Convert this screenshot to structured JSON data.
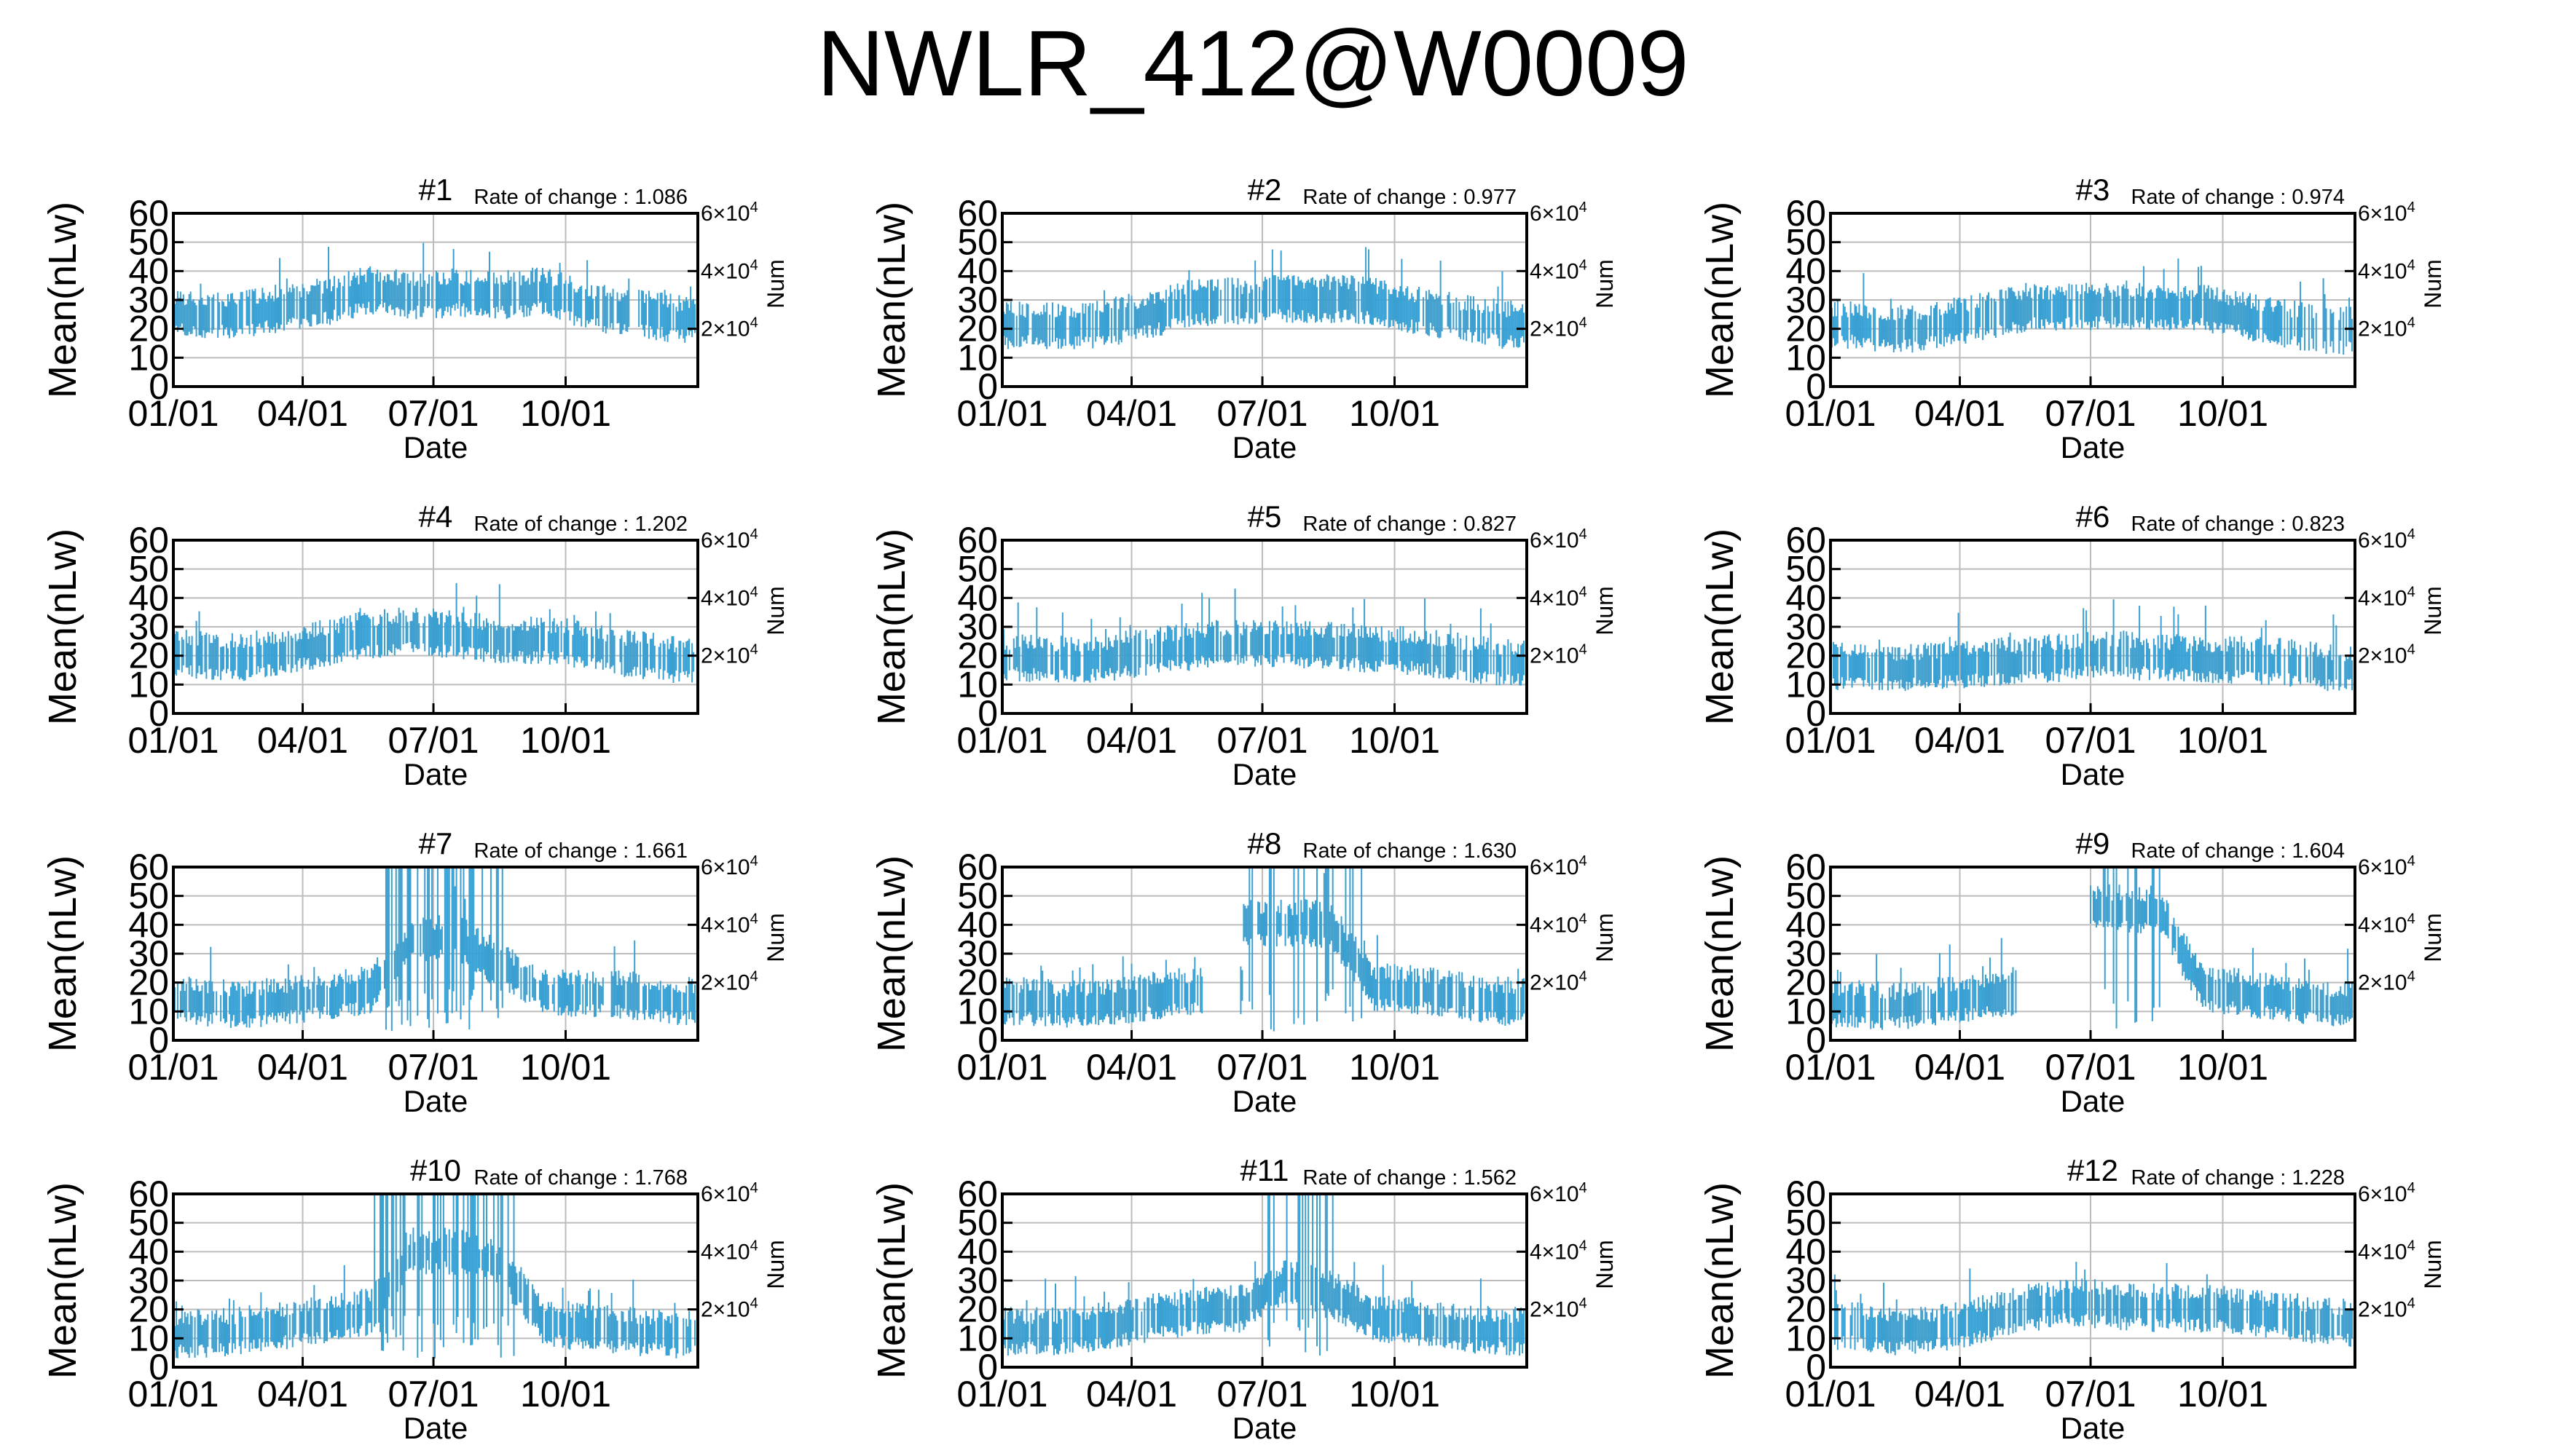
{
  "title": "NWLR_412@W0009",
  "colors": {
    "series": "#3a9fd1",
    "grid": "#bcbcbc",
    "frame": "#000000"
  },
  "common": {
    "ylabel": "Mean(nLw)",
    "xlabel": "Date",
    "right_label": "Num",
    "roc_prefix": "Rate of change : ",
    "y_ticks": [
      "0",
      "10",
      "20",
      "30",
      "40",
      "50",
      "60"
    ],
    "x_ticks": [
      "01/01",
      "04/01",
      "07/01",
      "10/01"
    ],
    "right_ticks": [
      "2×10",
      "4×10",
      "6×10"
    ],
    "right_tick_exp": "4"
  },
  "chart_data": [
    {
      "type": "line",
      "title": "#1",
      "rate_of_change": "1.086",
      "xlabel": "Date",
      "ylabel": "Mean(nLw)",
      "y2label": "Num",
      "x_ticks": [
        "01/01",
        "04/01",
        "07/01",
        "10/01"
      ],
      "ylim": [
        0,
        60
      ],
      "y2_ticks": [
        20000,
        40000,
        60000
      ],
      "grid": true,
      "profile": {
        "months": [
          1,
          2,
          3,
          4,
          5,
          6,
          7,
          8,
          9,
          10,
          11,
          12
        ],
        "mean": [
          25,
          24,
          27,
          29,
          33,
          31,
          32,
          31,
          33,
          27,
          25,
          23
        ]
      }
    },
    {
      "type": "line",
      "title": "#2",
      "rate_of_change": "0.977",
      "xlabel": "Date",
      "ylabel": "Mean(nLw)",
      "y2label": "Num",
      "x_ticks": [
        "01/01",
        "04/01",
        "07/01",
        "10/01"
      ],
      "ylim": [
        0,
        60
      ],
      "y2_ticks": [
        20000,
        40000,
        60000
      ],
      "grid": true,
      "profile": {
        "months": [
          1,
          2,
          3,
          4,
          5,
          6,
          7,
          8,
          9,
          10,
          11,
          12
        ],
        "mean": [
          21,
          20,
          22,
          25,
          29,
          29,
          30,
          30,
          29,
          26,
          23,
          21
        ]
      }
    },
    {
      "type": "line",
      "title": "#3",
      "rate_of_change": "0.974",
      "xlabel": "Date",
      "ylabel": "Mean(nLw)",
      "y2label": "Num",
      "x_ticks": [
        "01/01",
        "04/01",
        "07/01",
        "10/01"
      ],
      "ylim": [
        0,
        60
      ],
      "y2_ticks": [
        20000,
        40000,
        60000
      ],
      "grid": true,
      "profile": {
        "months": [
          1,
          2,
          3,
          4,
          5,
          6,
          7,
          8,
          9,
          10,
          11,
          12
        ],
        "mean": [
          21,
          19,
          21,
          24,
          27,
          27,
          28,
          27,
          27,
          24,
          21,
          19
        ]
      }
    },
    {
      "type": "line",
      "title": "#4",
      "rate_of_change": "1.202",
      "xlabel": "Date",
      "ylabel": "Mean(nLw)",
      "y2label": "Num",
      "x_ticks": [
        "01/01",
        "04/01",
        "07/01",
        "10/01"
      ],
      "ylim": [
        0,
        60
      ],
      "y2_ticks": [
        20000,
        40000,
        60000
      ],
      "grid": true,
      "profile": {
        "months": [
          1,
          2,
          3,
          4,
          5,
          6,
          7,
          8,
          9,
          10,
          11,
          12
        ],
        "mean": [
          20,
          19,
          21,
          24,
          27,
          28,
          27,
          25,
          25,
          23,
          20,
          18
        ]
      }
    },
    {
      "type": "line",
      "title": "#5",
      "rate_of_change": "0.827",
      "xlabel": "Date",
      "ylabel": "Mean(nLw)",
      "y2label": "Num",
      "x_ticks": [
        "01/01",
        "04/01",
        "07/01",
        "10/01"
      ],
      "ylim": [
        0,
        60
      ],
      "y2_ticks": [
        20000,
        40000,
        60000
      ],
      "grid": true,
      "profile": {
        "months": [
          1,
          2,
          3,
          4,
          5,
          6,
          7,
          8,
          9,
          10,
          11,
          12
        ],
        "mean": [
          19,
          18,
          19,
          21,
          23,
          24,
          24,
          23,
          22,
          21,
          19,
          17
        ]
      }
    },
    {
      "type": "line",
      "title": "#6",
      "rate_of_change": "0.823",
      "xlabel": "Date",
      "ylabel": "Mean(nLw)",
      "y2label": "Num",
      "x_ticks": [
        "01/01",
        "04/01",
        "07/01",
        "10/01"
      ],
      "ylim": [
        0,
        60
      ],
      "y2_ticks": [
        20000,
        40000,
        60000
      ],
      "grid": true,
      "profile": {
        "months": [
          1,
          2,
          3,
          4,
          5,
          6,
          7,
          8,
          9,
          10,
          11,
          12
        ],
        "mean": [
          16,
          15,
          16,
          17,
          18,
          19,
          20,
          19,
          18,
          18,
          17,
          15
        ]
      }
    },
    {
      "type": "line",
      "title": "#7",
      "rate_of_change": "1.661",
      "xlabel": "Date",
      "ylabel": "Mean(nLw)",
      "y2label": "Num",
      "x_ticks": [
        "01/01",
        "04/01",
        "07/01",
        "10/01"
      ],
      "ylim": [
        0,
        60
      ],
      "y2_ticks": [
        20000,
        40000,
        60000
      ],
      "grid": true,
      "profile": {
        "months": [
          1,
          2,
          3,
          4,
          5,
          6,
          7,
          8,
          9,
          10,
          11,
          12
        ],
        "mean": [
          13,
          12,
          13,
          15,
          17,
          35,
          35,
          25,
          16,
          16,
          15,
          13
        ]
      }
    },
    {
      "type": "line",
      "title": "#8",
      "rate_of_change": "1.630",
      "xlabel": "Date",
      "ylabel": "Mean(nLw)",
      "y2label": "Num",
      "x_ticks": [
        "01/01",
        "04/01",
        "07/01",
        "10/01"
      ],
      "ylim": [
        0,
        60
      ],
      "y2_ticks": [
        20000,
        40000,
        60000
      ],
      "grid": true,
      "profile": {
        "months": [
          1,
          2,
          3,
          4,
          5,
          6,
          7,
          8,
          9,
          10,
          11,
          12
        ],
        "mean": [
          13,
          12,
          13,
          15,
          17,
          null,
          40,
          40,
          18,
          17,
          15,
          13
        ]
      }
    },
    {
      "type": "line",
      "title": "#9",
      "rate_of_change": "1.604",
      "xlabel": "Date",
      "ylabel": "Mean(nLw)",
      "y2label": "Num",
      "x_ticks": [
        "01/01",
        "04/01",
        "07/01",
        "10/01"
      ],
      "ylim": [
        0,
        60
      ],
      "y2_ticks": [
        20000,
        40000,
        60000
      ],
      "grid": true,
      "profile": {
        "months": [
          1,
          2,
          3,
          4,
          5,
          6,
          7,
          8,
          9,
          10,
          11,
          12
        ],
        "mean": [
          12,
          11,
          13,
          15,
          17,
          null,
          45,
          45,
          18,
          16,
          14,
          12
        ]
      }
    },
    {
      "type": "line",
      "title": "#10",
      "rate_of_change": "1.768",
      "xlabel": "Date",
      "ylabel": "Mean(nLw)",
      "y2label": "Num",
      "x_ticks": [
        "01/01",
        "04/01",
        "07/01",
        "10/01"
      ],
      "ylim": [
        0,
        60
      ],
      "y2_ticks": [
        20000,
        40000,
        60000
      ],
      "grid": true,
      "profile": {
        "months": [
          1,
          2,
          3,
          4,
          5,
          6,
          7,
          8,
          9,
          10,
          11,
          12
        ],
        "mean": [
          11,
          12,
          14,
          16,
          19,
          40,
          40,
          35,
          15,
          13,
          12,
          11
        ]
      }
    },
    {
      "type": "line",
      "title": "#11",
      "rate_of_change": "1.562",
      "xlabel": "Date",
      "ylabel": "Mean(nLw)",
      "y2label": "Num",
      "x_ticks": [
        "01/01",
        "04/01",
        "07/01",
        "10/01"
      ],
      "ylim": [
        0,
        60
      ],
      "y2_ticks": [
        20000,
        40000,
        60000
      ],
      "grid": true,
      "profile": {
        "months": [
          1,
          2,
          3,
          4,
          5,
          6,
          7,
          8,
          9,
          10,
          11,
          12
        ],
        "mean": [
          12,
          12,
          14,
          17,
          19,
          20,
          30,
          25,
          17,
          15,
          13,
          12
        ]
      }
    },
    {
      "type": "line",
      "title": "#12",
      "rate_of_change": "1.228",
      "xlabel": "Date",
      "ylabel": "Mean(nLw)",
      "y2label": "Num",
      "x_ticks": [
        "01/01",
        "04/01",
        "07/01",
        "10/01"
      ],
      "ylim": [
        0,
        60
      ],
      "y2_ticks": [
        20000,
        40000,
        60000
      ],
      "grid": true,
      "profile": {
        "months": [
          1,
          2,
          3,
          4,
          5,
          6,
          7,
          8,
          9,
          10,
          11,
          12
        ],
        "mean": [
          14,
          12,
          13,
          16,
          20,
          22,
          21,
          20,
          20,
          19,
          17,
          15
        ]
      }
    }
  ]
}
